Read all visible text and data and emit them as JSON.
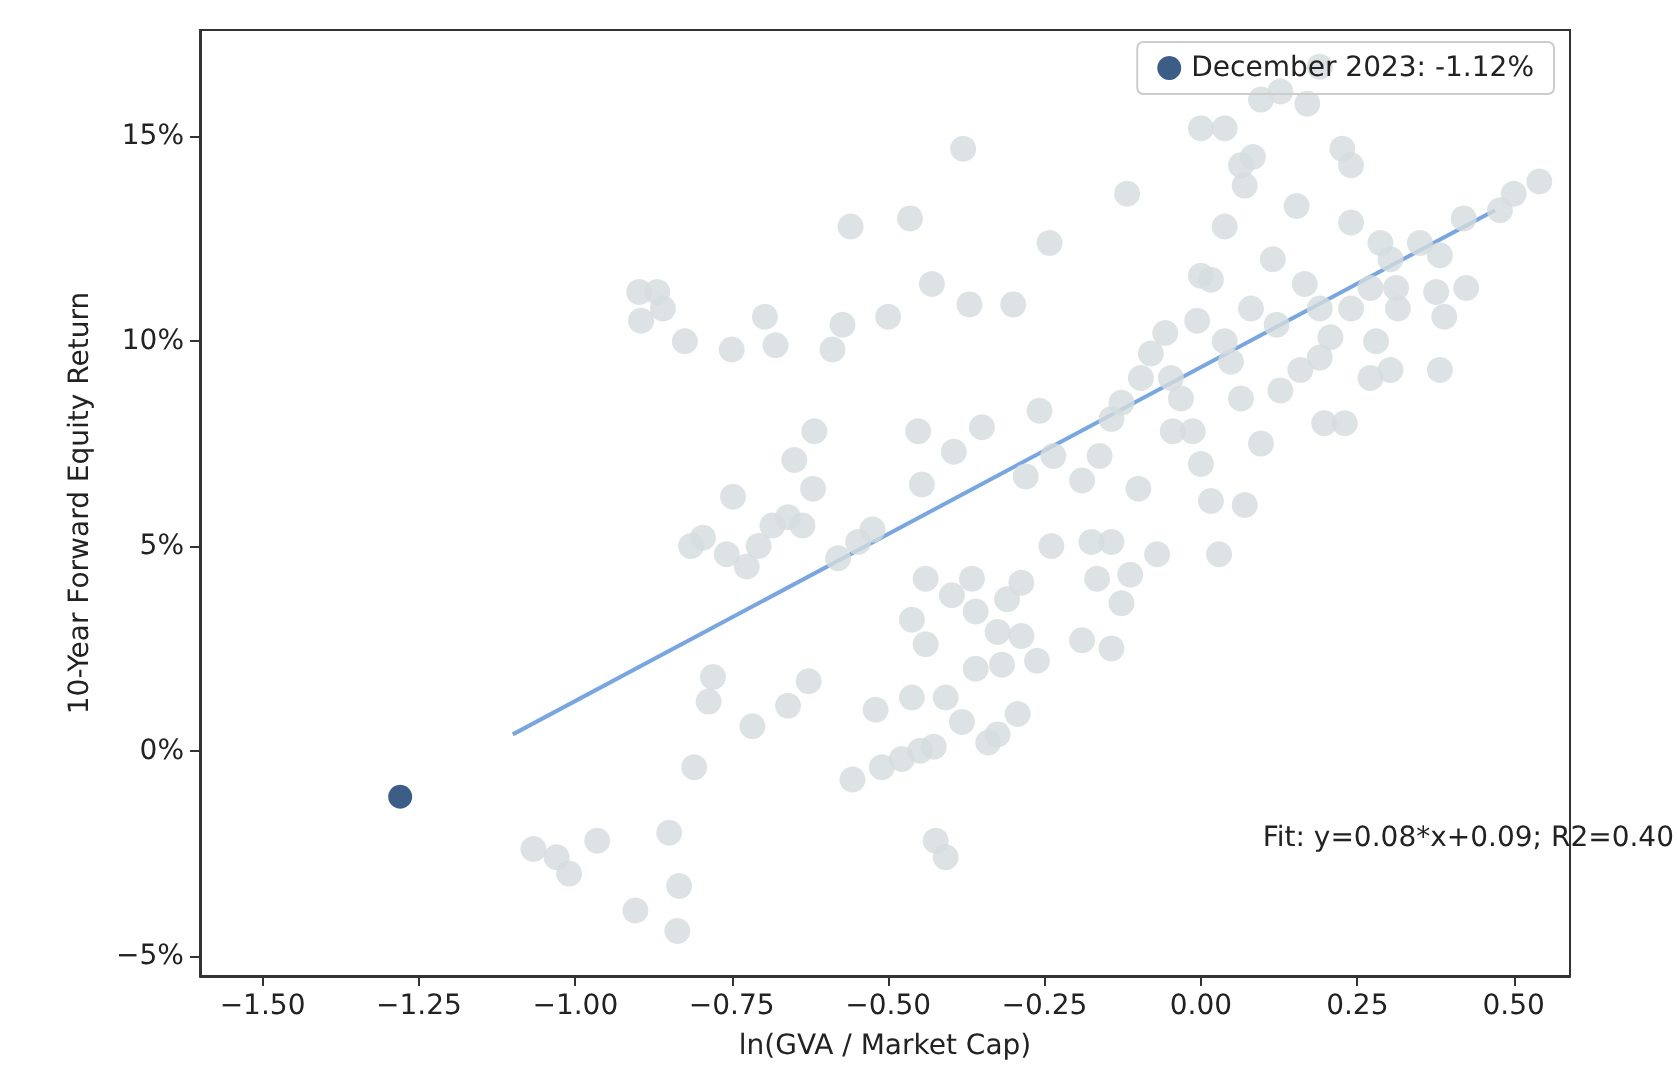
{
  "chart_data": {
    "type": "scatter",
    "xlabel": "ln(GVA / Market Cap)",
    "ylabel": "10-Year Forward Equity Return",
    "xlim": [
      -1.6,
      0.59
    ],
    "ylim": [
      -5.5,
      17.6
    ],
    "xticks": [
      {
        "value": -1.5,
        "label": "−1.50"
      },
      {
        "value": -1.25,
        "label": "−1.25"
      },
      {
        "value": -1,
        "label": "−1.00"
      },
      {
        "value": -0.75,
        "label": "−0.75"
      },
      {
        "value": -0.5,
        "label": "−0.50"
      },
      {
        "value": -0.25,
        "label": "−0.25"
      },
      {
        "value": 0,
        "label": "0.00"
      },
      {
        "value": 0.25,
        "label": "0.25"
      },
      {
        "value": 0.5,
        "label": "0.50"
      }
    ],
    "yticks": [
      {
        "value": -5,
        "label": "−5%"
      },
      {
        "value": 0,
        "label": "0%"
      },
      {
        "value": 5,
        "label": "5%"
      },
      {
        "value": 10,
        "label": "10%"
      },
      {
        "value": 15,
        "label": "15%"
      }
    ],
    "grid": false,
    "legend": "top right",
    "marker": "circle",
    "annotations": [
      "Fit: y=0.08*x+0.09; R2=0.40"
    ],
    "series": [
      {
        "color": "#d5dcdd",
        "x": [
          -1.067,
          -1.03,
          -1.01,
          -0.965,
          -0.904,
          -0.85,
          -0.834,
          -0.837,
          -0.81,
          -0.787,
          -0.78,
          -0.717,
          -0.66,
          -0.627,
          -0.557,
          -0.52,
          -0.898,
          -0.869,
          -0.895,
          -0.86,
          -0.825,
          -0.75,
          -0.697,
          -0.68,
          -0.56,
          -0.573,
          -0.589,
          -0.815,
          -0.796,
          -0.758,
          -0.726,
          -0.707,
          -0.685,
          -0.66,
          -0.637,
          -0.62,
          -0.748,
          -0.65,
          -0.618,
          -0.548,
          -0.525,
          -0.58,
          -0.465,
          -0.38,
          -0.43,
          -0.5,
          -0.37,
          -0.3,
          -0.242,
          -0.452,
          -0.446,
          -0.395,
          -0.35,
          -0.258,
          -0.28,
          -0.236,
          -0.19,
          -0.162,
          -0.143,
          -0.127,
          -0.118,
          -0.08,
          -0.096,
          -0.057,
          -0.048,
          -0.032,
          -0.013,
          0,
          0.016,
          -0.045,
          -0.1,
          -0.143,
          -0.166,
          -0.19,
          -0.143,
          -0.239,
          -0.287,
          -0.31,
          -0.325,
          -0.36,
          -0.382,
          -0.408,
          -0.427,
          -0.449,
          -0.478,
          -0.51,
          -0.424,
          -0.408,
          -0.462,
          -0.44,
          -0.36,
          -0.366,
          -0.398,
          -0.44,
          -0.462,
          -0.318,
          -0.287,
          -0.262,
          -0.34,
          -0.325,
          -0.293,
          -0.175,
          -0.127,
          -0.113,
          -0.07,
          0.029,
          0.07,
          0.096,
          0.064,
          0.083,
          0.127,
          0.096,
          0.19,
          0.17,
          0.226,
          0.24,
          0,
          0.038,
          0.07,
          0,
          0.038,
          0.153,
          0.24,
          0.115,
          0.166,
          0.08,
          0.121,
          0.19,
          0.287,
          0.303,
          0.35,
          0.382,
          0.376,
          0.424,
          0.312,
          0.271,
          0.24,
          0.315,
          0.28,
          0.207,
          0.159,
          0.19,
          0.127,
          0.197,
          0.23,
          0.271,
          0.303,
          0.382,
          0.389,
          0.478,
          0.5,
          0.541,
          0.42,
          0.038,
          0.048,
          -0.006,
          0.016,
          0.064
        ],
        "values": [
          -2.4,
          -2.6,
          -3.0,
          -2.2,
          -3.9,
          -2.0,
          -3.3,
          -4.4,
          -0.4,
          1.2,
          1.8,
          0.6,
          1.1,
          1.7,
          -0.7,
          1.0,
          11.2,
          11.2,
          10.5,
          10.8,
          10.0,
          9.8,
          10.6,
          9.9,
          12.8,
          10.4,
          9.8,
          5.0,
          5.2,
          4.8,
          4.5,
          5.0,
          5.5,
          5.7,
          5.5,
          6.4,
          6.2,
          7.1,
          7.8,
          5.1,
          5.4,
          4.7,
          13.0,
          14.7,
          11.4,
          10.6,
          10.9,
          10.9,
          12.4,
          7.8,
          6.5,
          7.3,
          7.9,
          8.3,
          6.7,
          7.2,
          6.6,
          7.2,
          8.1,
          8.5,
          13.6,
          9.7,
          9.1,
          10.2,
          9.1,
          8.6,
          7.8,
          7.0,
          6.1,
          7.8,
          6.4,
          5.1,
          4.2,
          2.7,
          2.5,
          5.0,
          4.1,
          3.7,
          2.9,
          2.0,
          0.7,
          1.3,
          0.1,
          0.0,
          -0.2,
          -0.4,
          -2.2,
          -2.6,
          1.3,
          2.6,
          3.4,
          4.2,
          3.8,
          4.2,
          3.2,
          2.1,
          2.8,
          2.2,
          0.2,
          0.4,
          0.9,
          5.1,
          3.6,
          4.3,
          4.8,
          4.8,
          6.0,
          7.5,
          14.3,
          14.5,
          16.1,
          15.9,
          16.7,
          15.8,
          14.7,
          14.3,
          15.2,
          15.2,
          13.8,
          11.6,
          12.8,
          13.3,
          12.9,
          12.0,
          11.4,
          10.8,
          10.4,
          10.8,
          12.4,
          12.0,
          12.4,
          12.1,
          11.2,
          11.3,
          11.3,
          11.3,
          10.8,
          10.8,
          10.0,
          10.1,
          9.3,
          9.6,
          8.8,
          8.0,
          8.0,
          9.1,
          9.3,
          9.3,
          10.6,
          13.2,
          13.6,
          13.9,
          13.0,
          10.0,
          9.5,
          10.5,
          11.5,
          8.6
        ]
      },
      {
        "type": "line",
        "color": "#7aa6e0",
        "marker": "none",
        "x": [
          -1.1,
          0.47
        ],
        "values": [
          0.4,
          13.2
        ]
      },
      {
        "name": "December 2023: -1.12%",
        "color": "#0b3466",
        "x": [
          -1.28
        ],
        "values": [
          -1.12
        ]
      }
    ]
  }
}
